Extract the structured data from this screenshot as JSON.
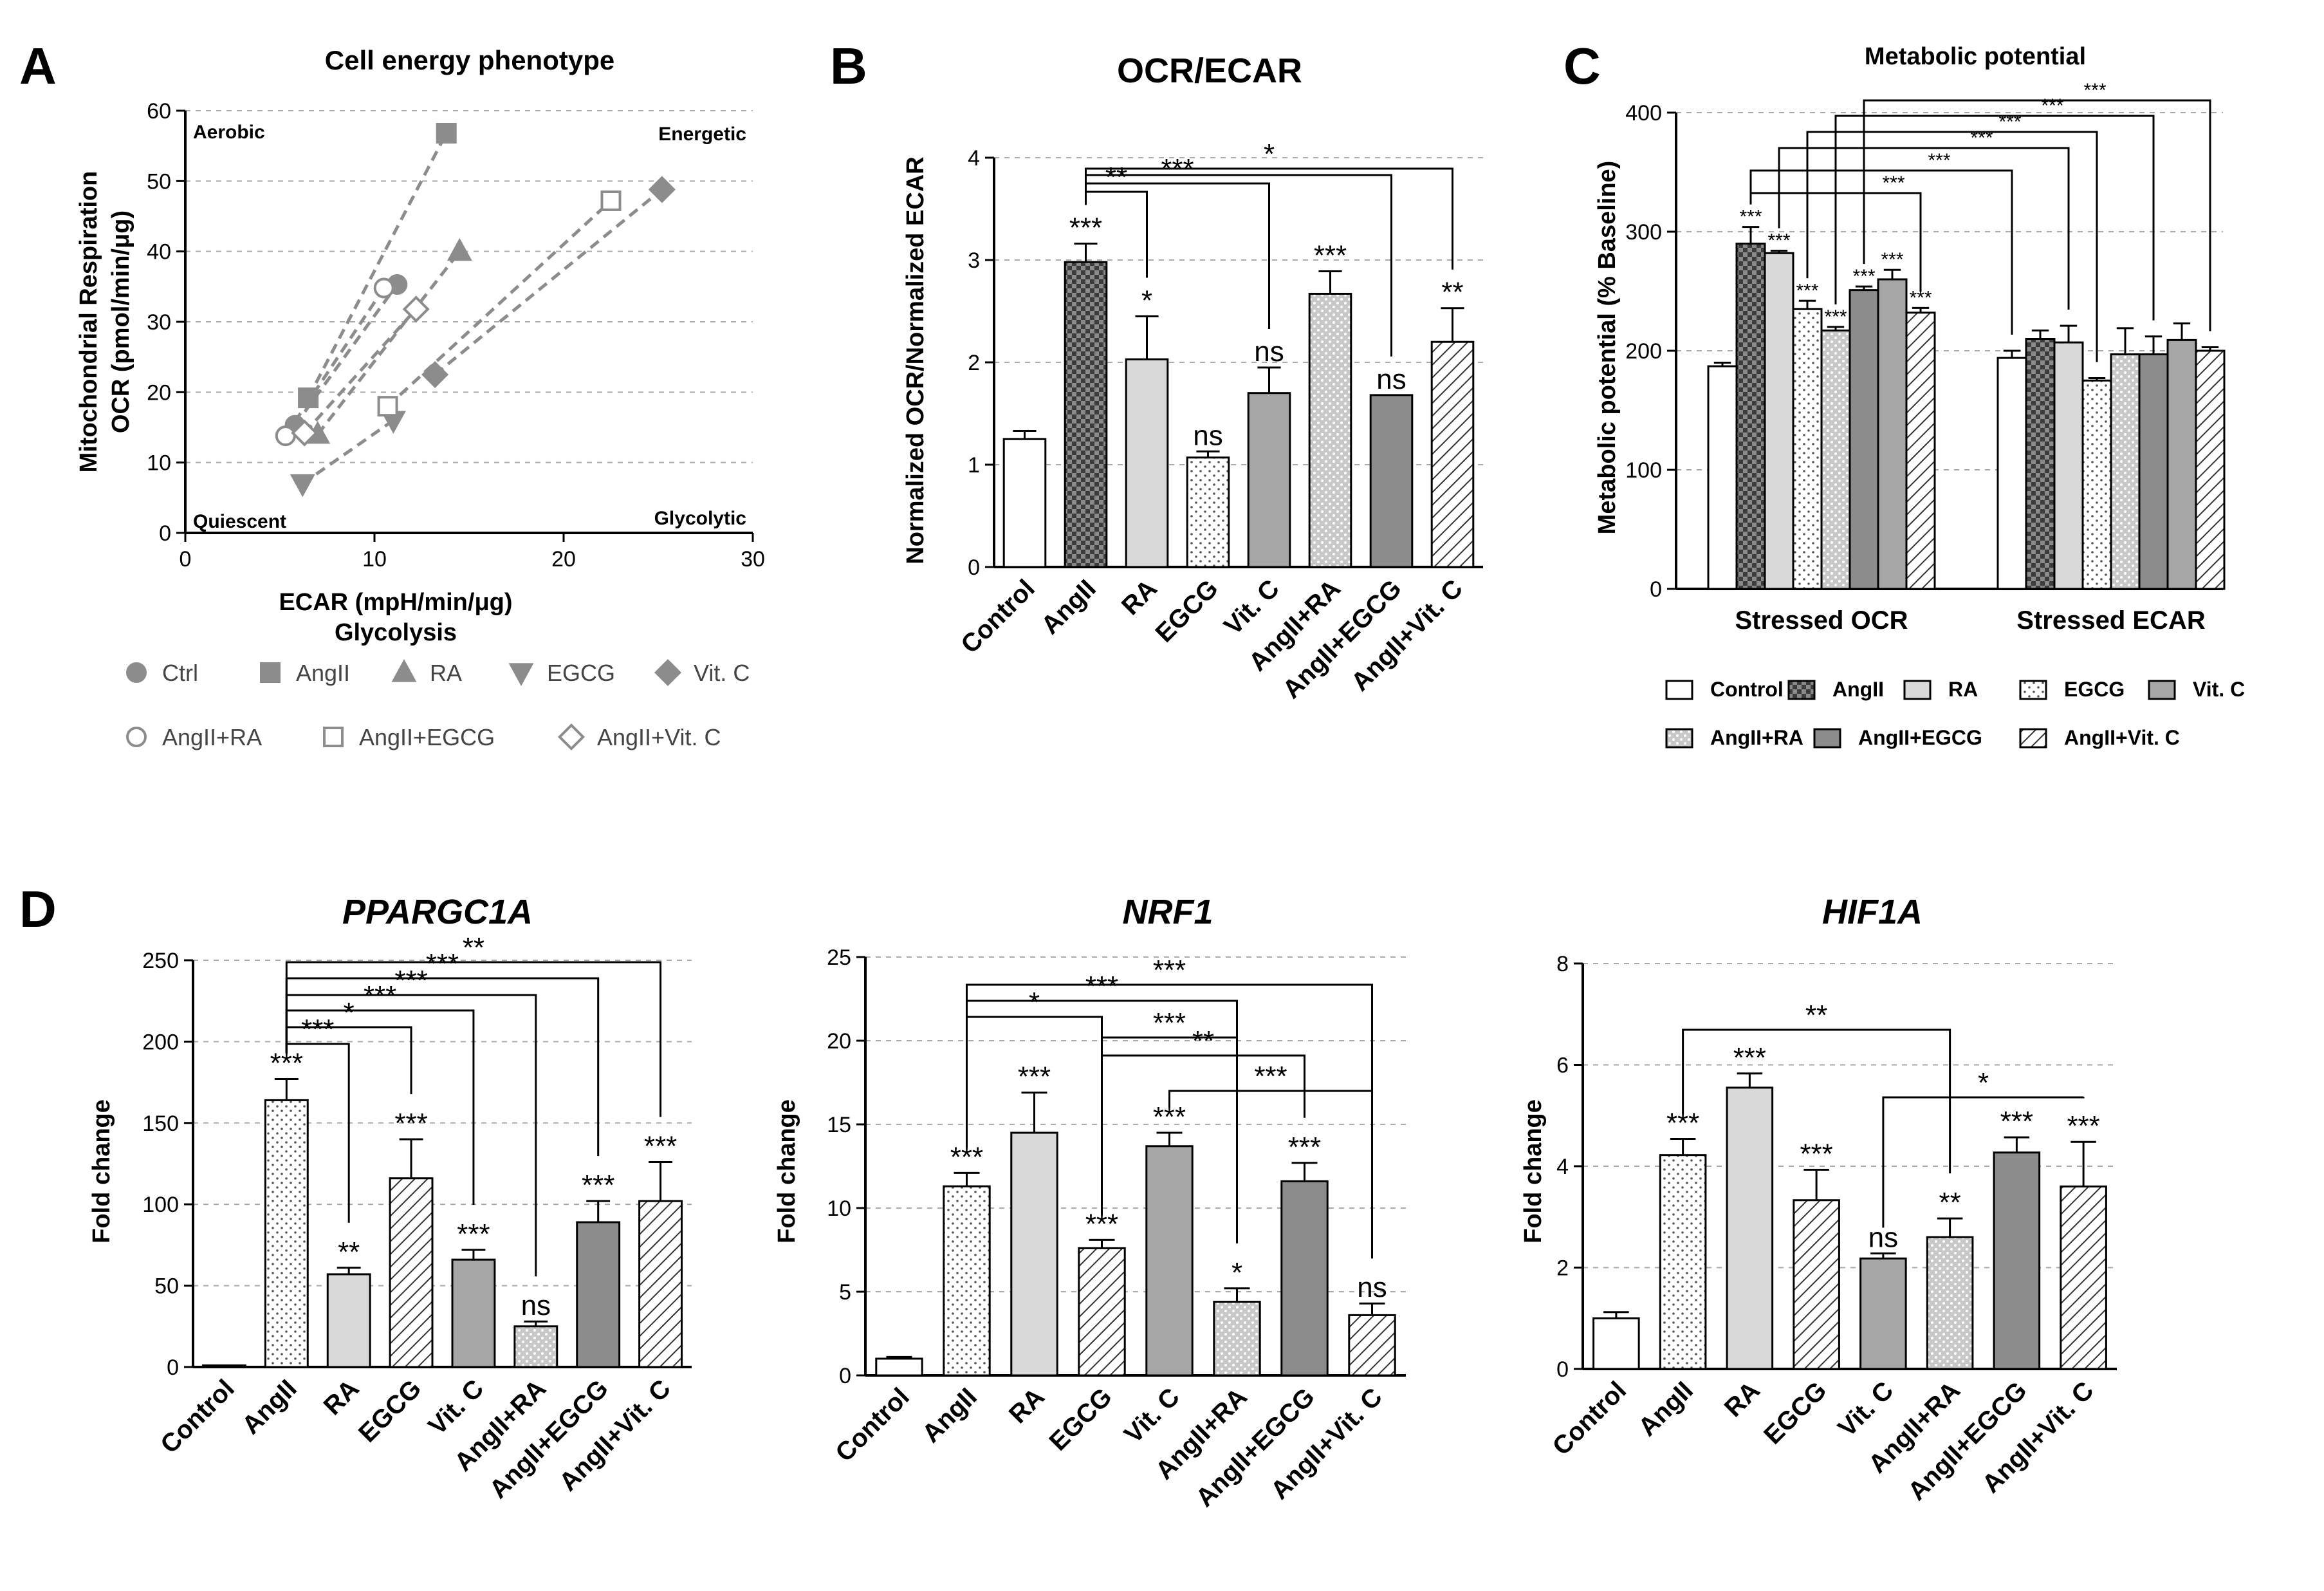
{
  "colors": {
    "ctrl": "#8c8c8c",
    "angii": "#8c8c8c",
    "line": "#8c8c8c"
  },
  "panels": {
    "A": "A",
    "B": "B",
    "C": "C",
    "D": "D"
  },
  "chart_data": [
    {
      "id": "A",
      "type": "scatter",
      "title": "Cell energy phenotype",
      "xlabel": "ECAR (mpH/min/μg)",
      "xlabel2": "Glycolysis",
      "ylabel": "OCR (pmol/min/μg)",
      "ylabel2": "Mitochondrial Respiration",
      "xlim": [
        0,
        30
      ],
      "ylim": [
        0,
        60
      ],
      "xticks": [
        0,
        10,
        20,
        30
      ],
      "yticks": [
        0,
        10,
        20,
        30,
        40,
        50,
        60
      ],
      "corners": {
        "top_left": "Aerobic",
        "top_right": "Energetic",
        "bottom_left": "Quiescent",
        "bottom_right": "Glycolytic"
      },
      "series": [
        {
          "name": "Ctrl",
          "marker": "circle",
          "filled": true,
          "x": [
            5.8,
            11.2
          ],
          "y": [
            15.3,
            35.3
          ]
        },
        {
          "name": "AngII",
          "marker": "square",
          "filled": true,
          "x": [
            6.5,
            13.8
          ],
          "y": [
            19.2,
            56.8
          ]
        },
        {
          "name": "RA",
          "marker": "triangle-up",
          "filled": true,
          "x": [
            7.0,
            14.5
          ],
          "y": [
            14.0,
            40.0
          ]
        },
        {
          "name": "EGCG",
          "marker": "triangle-down",
          "filled": true,
          "x": [
            6.2,
            11.0
          ],
          "y": [
            7.0,
            16.0
          ]
        },
        {
          "name": "Vit. C",
          "marker": "diamond",
          "filled": true,
          "x": [
            13.2,
            25.2
          ],
          "y": [
            22.5,
            48.8
          ]
        },
        {
          "name": "AngII+RA",
          "marker": "circle",
          "filled": false,
          "x": [
            5.3,
            10.5
          ],
          "y": [
            13.8,
            34.8
          ]
        },
        {
          "name": "AngII+EGCG",
          "marker": "square",
          "filled": false,
          "x": [
            10.7,
            22.5
          ],
          "y": [
            18.0,
            47.2
          ]
        },
        {
          "name": "AngII+Vit. C",
          "marker": "diamond",
          "filled": false,
          "x": [
            6.3,
            12.2
          ],
          "y": [
            14.2,
            31.8
          ]
        }
      ]
    },
    {
      "id": "B",
      "type": "bar",
      "title": "OCR/ECAR",
      "ylabel": "Normalized OCR/Normalized ECAR",
      "ylim": [
        0,
        4
      ],
      "yticks": [
        0,
        1,
        2,
        3,
        4
      ],
      "categories": [
        "Control",
        "AngII",
        "RA",
        "EGCG",
        "Vit. C",
        "AngII+RA",
        "AngII+EGCG",
        "AngII+Vit. C"
      ],
      "values": [
        1.25,
        2.98,
        2.03,
        1.07,
        1.7,
        2.67,
        1.68,
        2.2
      ],
      "errors": [
        0.08,
        0.18,
        0.42,
        0.06,
        0.25,
        0.22,
        0.0,
        0.33
      ],
      "bar_labels": [
        "",
        "***",
        "*",
        "ns",
        "ns",
        "***",
        "ns",
        "**"
      ],
      "comparisons": [
        {
          "from": 1,
          "to": 2,
          "label": "**"
        },
        {
          "from": 1,
          "to": 4,
          "label": "***"
        },
        {
          "from": 1,
          "to": 6,
          "label": ""
        },
        {
          "from": 1,
          "to": 7,
          "label": "*"
        }
      ]
    },
    {
      "id": "C",
      "type": "bar",
      "title": "Metabolic potential",
      "ylabel": "Metabolic potential (% Baseline)",
      "ylim": [
        0,
        400
      ],
      "yticks": [
        0,
        100,
        200,
        300,
        400
      ],
      "groups": [
        "Stressed OCR",
        "Stressed ECAR"
      ],
      "series": [
        {
          "name": "Control",
          "values": [
            187,
            194
          ],
          "errors": [
            3,
            6
          ],
          "labels": [
            "",
            ""
          ]
        },
        {
          "name": "AngII",
          "values": [
            290,
            210
          ],
          "errors": [
            14,
            7
          ],
          "labels": [
            "***",
            ""
          ]
        },
        {
          "name": "RA",
          "values": [
            282,
            207
          ],
          "errors": [
            2,
            14
          ],
          "labels": [
            "***",
            ""
          ]
        },
        {
          "name": "EGCG",
          "values": [
            235,
            175
          ],
          "errors": [
            7,
            2
          ],
          "labels": [
            "***",
            ""
          ]
        },
        {
          "name": "AngII+RA",
          "values": [
            217,
            197
          ],
          "errors": [
            3,
            22
          ],
          "labels": [
            "***",
            ""
          ]
        },
        {
          "name": "AngII+EGCG",
          "values": [
            251,
            197
          ],
          "errors": [
            3,
            15
          ],
          "labels": [
            "***",
            ""
          ]
        },
        {
          "name": "Vit. C",
          "values": [
            260,
            209
          ],
          "errors": [
            8,
            14
          ],
          "labels": [
            "***",
            ""
          ]
        },
        {
          "name": "AngII+Vit. C",
          "values": [
            232,
            200
          ],
          "errors": [
            4,
            3
          ],
          "labels": [
            "***",
            ""
          ]
        }
      ],
      "legend_order": [
        "Control",
        "AngII",
        "RA",
        "EGCG",
        "Vit. C",
        "AngII+RA",
        "AngII+EGCG",
        "AngII+Vit. C"
      ],
      "comparisons": [
        {
          "from_group": 0,
          "from": 1,
          "to_group": 0,
          "to": 7,
          "label": "***"
        },
        {
          "from_group": 0,
          "from": 1,
          "to_group": 1,
          "to": 0,
          "label": "***"
        },
        {
          "from_group": 0,
          "from": 2,
          "to_group": 1,
          "to": 2,
          "label": "***"
        },
        {
          "from_group": 0,
          "from": 3,
          "to_group": 1,
          "to": 3,
          "label": "***"
        },
        {
          "from_group": 0,
          "from": 4,
          "to_group": 1,
          "to": 5,
          "label": "***"
        },
        {
          "from_group": 0,
          "from": 5,
          "to_group": 1,
          "to": 7,
          "label": "***"
        }
      ]
    },
    {
      "id": "D1",
      "type": "bar",
      "title": "PPARGC1A",
      "ylabel": "Fold change",
      "ylim": [
        0,
        250
      ],
      "yticks": [
        0,
        50,
        100,
        150,
        200,
        250
      ],
      "categories": [
        "Control",
        "AngII",
        "RA",
        "EGCG",
        "Vit. C",
        "AngII+RA",
        "AngII+EGCG",
        "AngII+Vit. C"
      ],
      "values": [
        1,
        164,
        57,
        116,
        66,
        25,
        89,
        102
      ],
      "errors": [
        0,
        13,
        4,
        24,
        6,
        3,
        13,
        24
      ],
      "bar_labels": [
        "",
        "***",
        "**",
        "***",
        "***",
        "ns",
        "***",
        "***"
      ],
      "comparisons": [
        {
          "from": 1,
          "to": 2,
          "label": "***"
        },
        {
          "from": 1,
          "to": 3,
          "label": "*"
        },
        {
          "from": 1,
          "to": 4,
          "label": "***"
        },
        {
          "from": 1,
          "to": 5,
          "label": "***"
        },
        {
          "from": 1,
          "to": 6,
          "label": "***"
        },
        {
          "from": 1,
          "to": 7,
          "label": "**"
        }
      ]
    },
    {
      "id": "D2",
      "type": "bar",
      "title": "NRF1",
      "ylabel": "Fold change",
      "ylim": [
        0,
        25
      ],
      "yticks": [
        0,
        5,
        10,
        15,
        20,
        25
      ],
      "categories": [
        "Control",
        "AngII",
        "RA",
        "EGCG",
        "Vit. C",
        "AngII+RA",
        "AngII+EGCG",
        "AngII+Vit. C"
      ],
      "values": [
        1,
        11.3,
        14.5,
        7.6,
        13.7,
        4.4,
        11.6,
        3.6
      ],
      "errors": [
        0.1,
        0.8,
        2.4,
        0.5,
        0.8,
        0.8,
        1.1,
        0.7
      ],
      "bar_labels": [
        "",
        "***",
        "***",
        "***",
        "***",
        "*",
        "***",
        "ns"
      ],
      "comparisons": [
        {
          "from": 1,
          "to": 3,
          "label": "*"
        },
        {
          "from": 1,
          "to": 5,
          "label": "***"
        },
        {
          "from": 1,
          "to": 7,
          "label": "***"
        },
        {
          "from": 3,
          "to": 5,
          "label": "***"
        },
        {
          "from": 3,
          "to": 6,
          "label": "**"
        },
        {
          "from": 4,
          "to": 7,
          "label": "***"
        }
      ]
    },
    {
      "id": "D3",
      "type": "bar",
      "title": "HIF1A",
      "ylabel": "Fold change",
      "ylim": [
        0,
        8
      ],
      "yticks": [
        0,
        2,
        4,
        6,
        8
      ],
      "categories": [
        "Control",
        "AngII",
        "RA",
        "EGCG",
        "Vit. C",
        "AngII+RA",
        "AngII+EGCG",
        "AngII+Vit. C"
      ],
      "values": [
        1,
        4.22,
        5.55,
        3.33,
        2.18,
        2.6,
        4.27,
        3.6
      ],
      "errors": [
        0.12,
        0.32,
        0.28,
        0.6,
        0.1,
        0.37,
        0.3,
        0.88
      ],
      "bar_labels": [
        "",
        "***",
        "***",
        "***",
        "ns",
        "**",
        "***",
        "***"
      ],
      "comparisons": [
        {
          "from": 1,
          "to": 5,
          "label": "**"
        },
        {
          "from": 4,
          "to": 7,
          "label": "*"
        }
      ]
    }
  ]
}
